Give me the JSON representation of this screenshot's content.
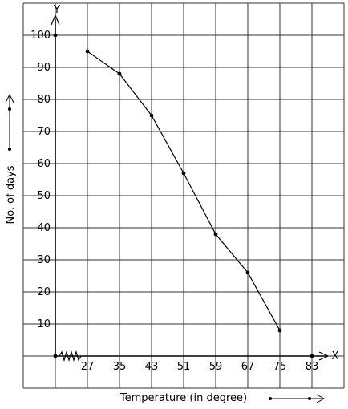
{
  "chart_data": {
    "type": "line",
    "title": "",
    "xlabel": "Temperature (in degree)",
    "ylabel": "No. of days",
    "x_axis_letter": "X",
    "y_axis_letter": "Y",
    "x_ticks": [
      27,
      35,
      43,
      51,
      59,
      67,
      75,
      83
    ],
    "y_ticks": [
      10,
      20,
      30,
      40,
      50,
      60,
      70,
      80,
      90,
      100
    ],
    "xlim": [
      19,
      83
    ],
    "ylim": [
      0,
      100
    ],
    "x_axis_break": true,
    "grid": true,
    "series": [
      {
        "x": [
          27,
          35,
          43,
          51,
          59,
          67,
          75
        ],
        "y": [
          95,
          88,
          75,
          57,
          38,
          26,
          8
        ]
      }
    ],
    "colors": {
      "line": "#000000",
      "grid": "#333333"
    }
  }
}
